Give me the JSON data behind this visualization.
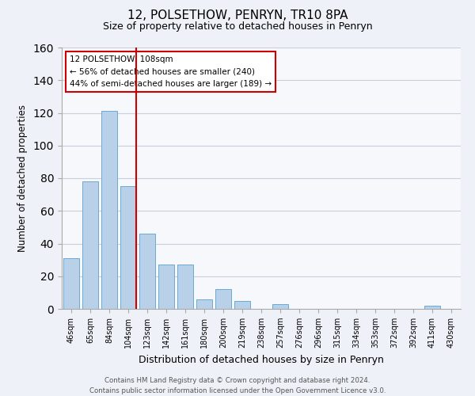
{
  "title": "12, POLSETHOW, PENRYN, TR10 8PA",
  "subtitle": "Size of property relative to detached houses in Penryn",
  "xlabel": "Distribution of detached houses by size in Penryn",
  "ylabel": "Number of detached properties",
  "categories": [
    "46sqm",
    "65sqm",
    "84sqm",
    "104sqm",
    "123sqm",
    "142sqm",
    "161sqm",
    "180sqm",
    "200sqm",
    "219sqm",
    "238sqm",
    "257sqm",
    "276sqm",
    "296sqm",
    "315sqm",
    "334sqm",
    "353sqm",
    "372sqm",
    "392sqm",
    "411sqm",
    "430sqm"
  ],
  "values": [
    31,
    78,
    121,
    75,
    46,
    27,
    27,
    6,
    12,
    5,
    0,
    3,
    0,
    0,
    0,
    0,
    0,
    0,
    0,
    2,
    0
  ],
  "bar_color": "#b8d0e8",
  "bar_edge_color": "#6aaad4",
  "vline_index": 3,
  "vline_color": "#cc0000",
  "ylim": [
    0,
    160
  ],
  "yticks": [
    0,
    20,
    40,
    60,
    80,
    100,
    120,
    140,
    160
  ],
  "annotation_title": "12 POLSETHOW: 108sqm",
  "annotation_line1": "← 56% of detached houses are smaller (240)",
  "annotation_line2": "44% of semi-detached houses are larger (189) →",
  "footer_line1": "Contains HM Land Registry data © Crown copyright and database right 2024.",
  "footer_line2": "Contains public sector information licensed under the Open Government Licence v3.0.",
  "background_color": "#eef2f8",
  "plot_background_color": "#f6f8fc",
  "grid_color": "#c8d0dc"
}
